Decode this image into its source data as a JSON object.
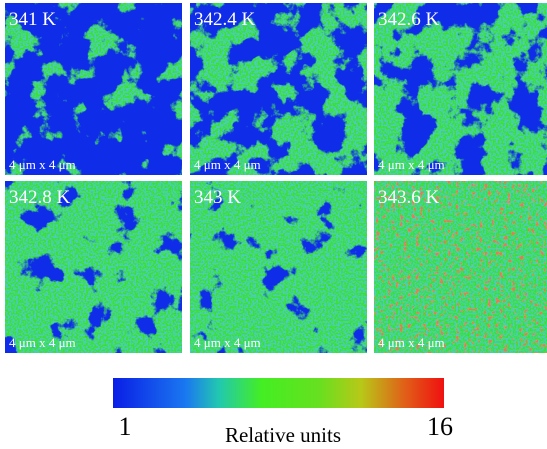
{
  "panels": [
    {
      "label": "341 K",
      "scale": "4 μm x 4 μm"
    },
    {
      "label": "342.4 K",
      "scale": "4 μm x 4 μm"
    },
    {
      "label": "342.6 K",
      "scale": "4 μm x 4 μm"
    },
    {
      "label": "342.8 K",
      "scale": "4 μm x 4 μm"
    },
    {
      "label": "343 K",
      "scale": "4 μm x 4 μm"
    },
    {
      "label": "343.6 K",
      "scale": "4 μm x 4 μm"
    }
  ],
  "colorbar": {
    "min": 1,
    "max": 16,
    "label": "Relative units"
  }
}
